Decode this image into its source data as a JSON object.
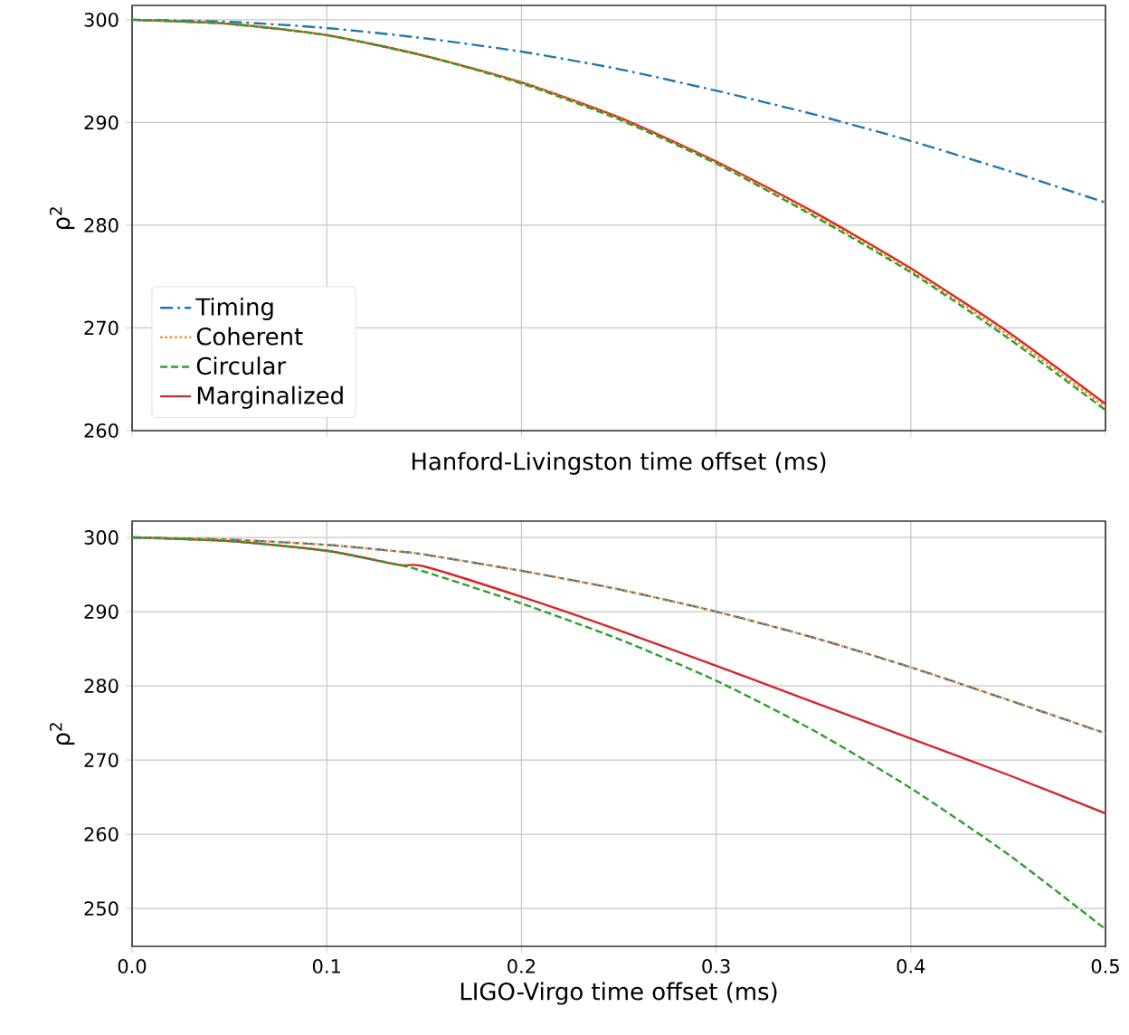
{
  "chart_data": [
    {
      "type": "line",
      "xlabel": "Hanford-Livingston time offset (ms)",
      "ylabel": "ρ$^{2}$",
      "xlim": [
        0,
        0.5
      ],
      "ylim": [
        260,
        301.4
      ],
      "xticks": [
        0,
        0.1,
        0.2,
        0.3,
        0.4,
        0.5
      ],
      "yticks": [
        260,
        270,
        280,
        290,
        300
      ],
      "tick_labels": "y",
      "grid": true,
      "legend": "bottom left",
      "marker": "none",
      "x": [
        0,
        0.05,
        0.1,
        0.15,
        0.2,
        0.25,
        0.3,
        0.35,
        0.4,
        0.45,
        0.5
      ],
      "series": [
        {
          "name": "Timing",
          "color": "#1f77b4",
          "line_style": "dashdot",
          "values": [
            300,
            299.8,
            299.2,
            298.2,
            296.9,
            295.2,
            293.1,
            290.8,
            288.2,
            285.3,
            282.2
          ]
        },
        {
          "name": "Coherent",
          "color": "#ff7f0e",
          "line_style": "dotted",
          "values": [
            300,
            299.6,
            298.5,
            296.5,
            293.9,
            290.4,
            286.1,
            281.1,
            275.6,
            269.3,
            262.3
          ]
        },
        {
          "name": "Circular",
          "color": "#2ca02c",
          "line_style": "dashed",
          "values": [
            300,
            299.6,
            298.5,
            296.5,
            293.8,
            290.3,
            286.0,
            280.9,
            275.4,
            269.0,
            262.0
          ]
        },
        {
          "name": "Marginalized",
          "color": "#d62728",
          "line_style": "solid",
          "values": [
            300,
            299.6,
            298.5,
            296.5,
            293.9,
            290.5,
            286.2,
            281.3,
            275.8,
            269.6,
            262.6
          ]
        }
      ]
    },
    {
      "type": "line",
      "xlabel": "LIGO-Virgo time offset (ms)",
      "ylabel": "ρ$^{2}$",
      "xlim": [
        0,
        0.5
      ],
      "ylim": [
        244.9,
        302.2
      ],
      "xticks": [
        {
          "value": 0,
          "label": "0.0"
        },
        {
          "value": 0.1,
          "label": "0.1"
        },
        {
          "value": 0.2,
          "label": "0.2"
        },
        {
          "value": 0.3,
          "label": "0.3"
        },
        {
          "value": 0.4,
          "label": "0.4"
        },
        {
          "value": 0.5,
          "label": "0.5"
        }
      ],
      "yticks": [
        250,
        260,
        270,
        280,
        290,
        300
      ],
      "grid": true,
      "legend": false,
      "marker": "none",
      "x": [
        0,
        0.05,
        0.1,
        0.137,
        0.15,
        0.2,
        0.25,
        0.3,
        0.35,
        0.4,
        0.45,
        0.5
      ],
      "series": [
        {
          "color": "#1f77b4",
          "line_style": "dashdot",
          "values": [
            300,
            299.7,
            299.0,
            298.1,
            297.7,
            295.5,
            293.0,
            290.0,
            286.5,
            282.5,
            278.1,
            273.6
          ]
        },
        {
          "color": "#ff7f0e",
          "line_style": "dotted",
          "values": [
            300,
            299.7,
            299.0,
            298.1,
            297.7,
            295.5,
            293.0,
            290.0,
            286.5,
            282.5,
            278.1,
            273.6
          ]
        },
        {
          "color": "#2ca02c",
          "line_style": "dashed",
          "values": [
            300,
            299.5,
            298.2,
            296.3,
            295.4,
            291.1,
            286.3,
            280.7,
            274.0,
            266.2,
            257.3,
            247.2
          ]
        },
        {
          "color": "#d62728",
          "line_style": "solid",
          "values": [
            300,
            299.5,
            298.2,
            296.3,
            296.1,
            292.0,
            287.5,
            282.7,
            277.8,
            272.9,
            268.0,
            262.8
          ]
        }
      ]
    }
  ]
}
